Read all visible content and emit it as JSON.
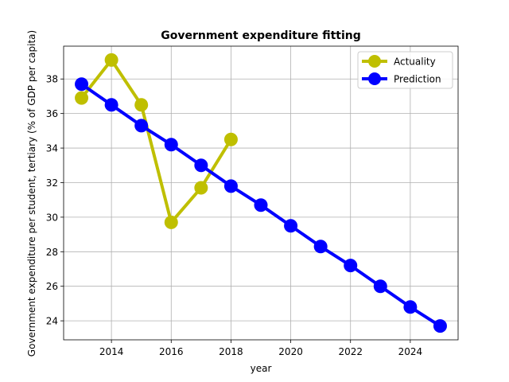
{
  "chart_data": {
    "type": "line",
    "title": "Government expenditure fitting",
    "xlabel": "year",
    "ylabel": "Government expenditure per student, tertiary (% of GDP per capita)",
    "xlim": [
      2012.4,
      2025.6
    ],
    "ylim": [
      22.9,
      39.9
    ],
    "x_ticks": [
      "2014",
      "2016",
      "2018",
      "2020",
      "2022",
      "2024"
    ],
    "y_ticks": [
      "24",
      "26",
      "28",
      "30",
      "32",
      "34",
      "36",
      "38"
    ],
    "x_tick_values": [
      2014,
      2016,
      2018,
      2020,
      2022,
      2024
    ],
    "y_tick_values": [
      24,
      26,
      28,
      30,
      32,
      34,
      36,
      38
    ],
    "grid": true,
    "legend_position": "top-right",
    "series": [
      {
        "name": "Actuality",
        "color": "#bfbf00",
        "x": [
          2013,
          2014,
          2015,
          2016,
          2017,
          2018
        ],
        "y": [
          36.9,
          39.1,
          36.5,
          29.7,
          31.7,
          34.5
        ]
      },
      {
        "name": "Prediction",
        "color": "#0000ff",
        "x": [
          2013,
          2014,
          2015,
          2016,
          2017,
          2018,
          2019,
          2020,
          2021,
          2022,
          2023,
          2024,
          2025
        ],
        "y": [
          37.7,
          36.5,
          35.3,
          34.2,
          33.0,
          31.8,
          30.7,
          29.5,
          28.3,
          27.2,
          26.0,
          24.8,
          23.7
        ]
      }
    ]
  }
}
